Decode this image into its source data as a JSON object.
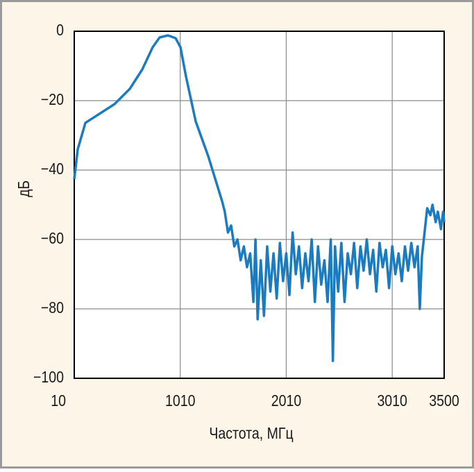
{
  "chart_data": {
    "type": "line",
    "x_label": "Частота, МГц",
    "y_label": "дБ",
    "xlim": [
      10,
      3500
    ],
    "xticks": [
      10,
      1010,
      2010,
      3010,
      3500
    ],
    "ylim": [
      -100,
      0
    ],
    "yticks": [
      0,
      {
        "value": -20,
        "label": "−20"
      },
      {
        "value": -40,
        "label": "−40"
      },
      {
        "value": -60,
        "label": "−60"
      },
      {
        "value": -80,
        "label": "−80"
      },
      {
        "value": -100,
        "label": "−100"
      }
    ],
    "grid": true,
    "series": [
      {
        "color": "#1a7bc0",
        "x": [
          10,
          43,
          115,
          390,
          534,
          652,
          750,
          815,
          894,
          966,
          1012,
          1064,
          1156,
          1274,
          1405,
          1430,
          1460,
          1490,
          1520,
          1550,
          1580,
          1610,
          1640,
          1670,
          1700,
          1720,
          1740,
          1770,
          1800,
          1830,
          1860,
          1890,
          1920,
          1950,
          1980,
          2010,
          2040,
          2070,
          2100,
          2130,
          2160,
          2190,
          2220,
          2250,
          2280,
          2310,
          2340,
          2370,
          2400,
          2430,
          2450,
          2470,
          2500,
          2530,
          2560,
          2590,
          2620,
          2650,
          2680,
          2710,
          2740,
          2770,
          2800,
          2830,
          2860,
          2890,
          2920,
          2950,
          2980,
          3010,
          3040,
          3070,
          3100,
          3130,
          3160,
          3190,
          3220,
          3250,
          3270,
          3290,
          3340,
          3370,
          3390,
          3420,
          3440,
          3470,
          3490,
          3500
        ],
        "values": [
          -42.6,
          -34,
          -26.4,
          -21,
          -16.6,
          -11,
          -4.6,
          -1.8,
          -1.2,
          -2,
          -4.6,
          -13,
          -26,
          -36,
          -49,
          -52,
          -58,
          -56,
          -62,
          -60,
          -66,
          -62,
          -68,
          -64,
          -78,
          -60,
          -83,
          -66,
          -82,
          -62,
          -75,
          -64,
          -77,
          -61,
          -72,
          -64,
          -76,
          -58,
          -70,
          -62,
          -74,
          -64,
          -72,
          -60,
          -78,
          -62,
          -73,
          -66,
          -78,
          -60,
          -95,
          -62,
          -75,
          -61,
          -78,
          -64,
          -70,
          -61,
          -74,
          -62,
          -69,
          -60,
          -70,
          -63,
          -75,
          -61,
          -68,
          -63,
          -74,
          -62,
          -70,
          -64,
          -72,
          -62,
          -69,
          -61,
          -68,
          -62,
          -80,
          -65,
          -51,
          -53,
          -50,
          -55,
          -52,
          -57,
          -52,
          -55
        ]
      }
    ]
  }
}
